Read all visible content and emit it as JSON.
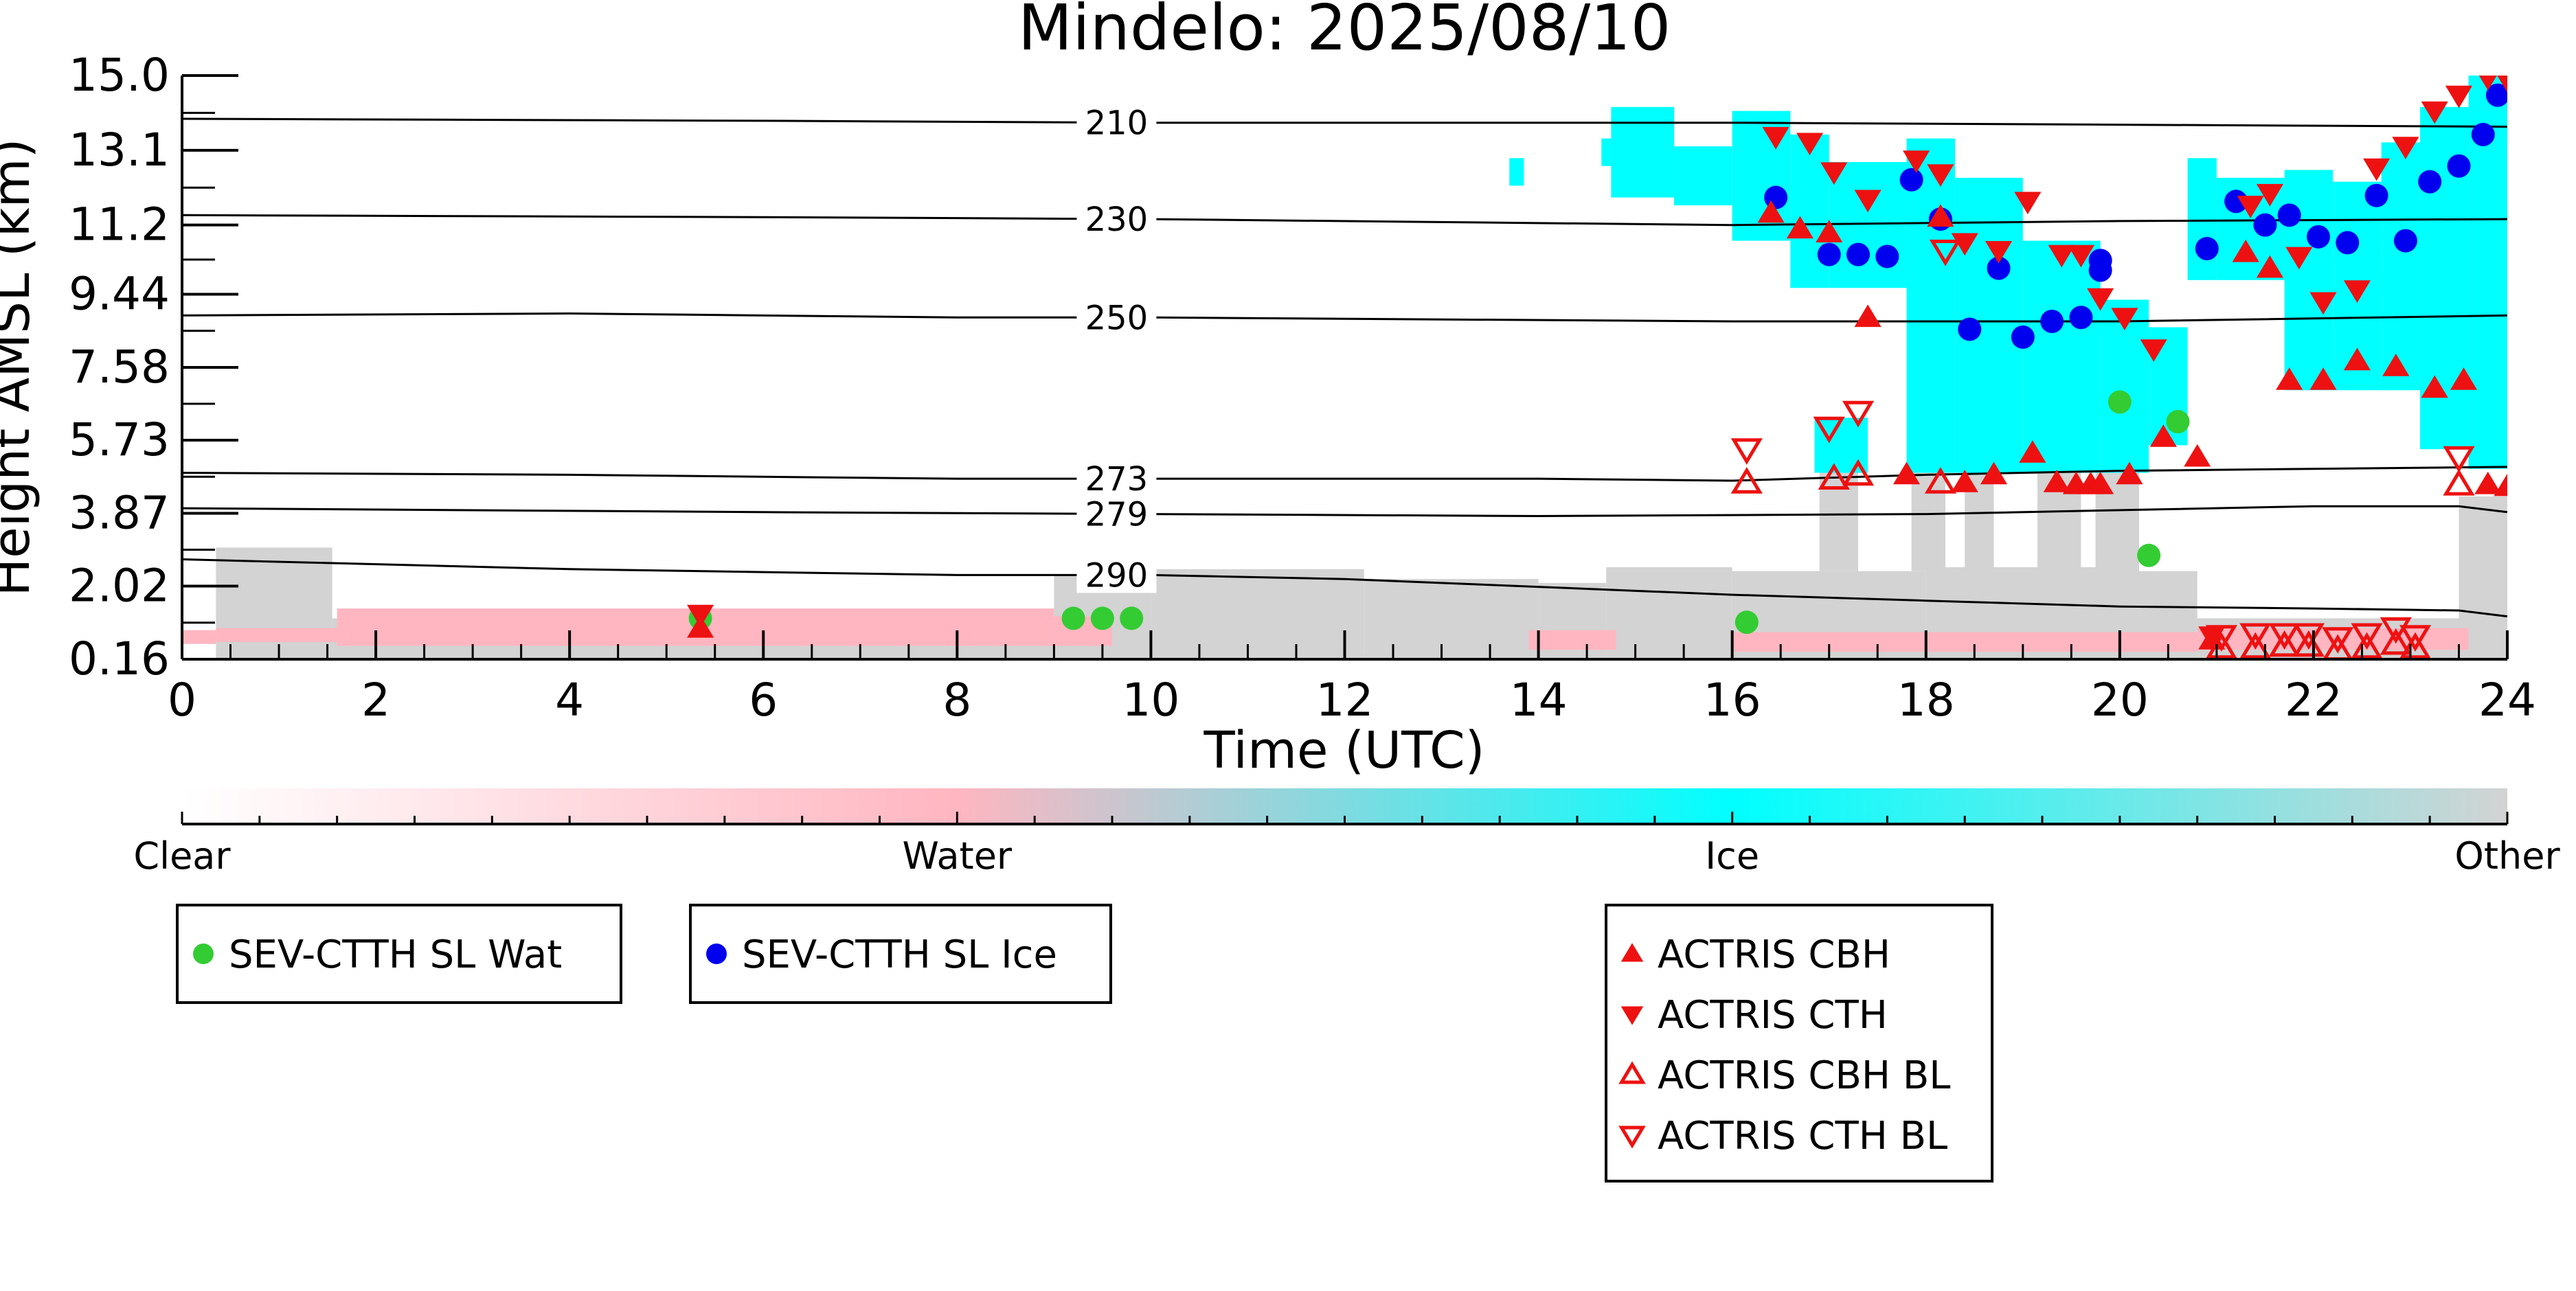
{
  "chart_data": {
    "type": "scatter",
    "title": "Mindelo: 2025/08/10",
    "xlabel": "Time (UTC)",
    "ylabel": "Height AMSL (km)",
    "xlim": [
      0,
      24
    ],
    "ylim": [
      0.16,
      15.0
    ],
    "x_ticks": [
      "0",
      "2",
      "4",
      "6",
      "8",
      "10",
      "12",
      "14",
      "16",
      "18",
      "20",
      "22",
      "24"
    ],
    "y_ticks": [
      "0.16",
      "2.02",
      "3.87",
      "5.73",
      "7.58",
      "9.44",
      "11.2",
      "13.1",
      "15.0"
    ],
    "isotherms": [
      {
        "label": "210",
        "label_x": 10.0,
        "points": [
          [
            0,
            13.9
          ],
          [
            6,
            13.85
          ],
          [
            10,
            13.8
          ],
          [
            16,
            13.8
          ],
          [
            20,
            13.75
          ],
          [
            24,
            13.7
          ]
        ]
      },
      {
        "label": "230",
        "label_x": 10.0,
        "points": [
          [
            0,
            11.45
          ],
          [
            6,
            11.4
          ],
          [
            10,
            11.35
          ],
          [
            16,
            11.2
          ],
          [
            20,
            11.3
          ],
          [
            24,
            11.35
          ]
        ]
      },
      {
        "label": "250",
        "label_x": 10.0,
        "points": [
          [
            0,
            8.9
          ],
          [
            4,
            8.95
          ],
          [
            8,
            8.85
          ],
          [
            10,
            8.85
          ],
          [
            16,
            8.75
          ],
          [
            20,
            8.75
          ],
          [
            24,
            8.9
          ]
        ]
      },
      {
        "label": "273",
        "label_x": 10.0,
        "points": [
          [
            0,
            4.9
          ],
          [
            4,
            4.85
          ],
          [
            8,
            4.75
          ],
          [
            10,
            4.75
          ],
          [
            14,
            4.75
          ],
          [
            16,
            4.7
          ],
          [
            18,
            4.85
          ],
          [
            20,
            4.95
          ],
          [
            24,
            5.05
          ]
        ]
      },
      {
        "label": "279",
        "label_x": 10.0,
        "points": [
          [
            0,
            4.0
          ],
          [
            6,
            3.9
          ],
          [
            10,
            3.85
          ],
          [
            14,
            3.8
          ],
          [
            18,
            3.85
          ],
          [
            20,
            3.95
          ],
          [
            22,
            4.05
          ],
          [
            23.5,
            4.05
          ],
          [
            24,
            3.9
          ]
        ]
      },
      {
        "label": "290",
        "label_x": 10.0,
        "points": [
          [
            0,
            2.7
          ],
          [
            4,
            2.45
          ],
          [
            8,
            2.3
          ],
          [
            10,
            2.3
          ],
          [
            12,
            2.2
          ],
          [
            14,
            2.0
          ],
          [
            16,
            1.8
          ],
          [
            18,
            1.65
          ],
          [
            20,
            1.5
          ],
          [
            22,
            1.45
          ],
          [
            23.5,
            1.4
          ],
          [
            24,
            1.25
          ]
        ]
      }
    ],
    "colorbar": {
      "labels": [
        "Clear",
        "Water",
        "Ice",
        "Other"
      ],
      "colors": [
        "#ffffff",
        "#ffb6c1",
        "#00ffff",
        "#d3d3d3"
      ]
    },
    "classification_colors": {
      "water": "#ffb6c1",
      "ice": "#00ffff",
      "other": "#d3d3d3"
    },
    "series": [
      {
        "name": "SEV-CTTH SL Wat",
        "marker": "circle",
        "color": "#33cc33",
        "points": [
          [
            5.35,
            1.2
          ],
          [
            9.2,
            1.2
          ],
          [
            9.5,
            1.2
          ],
          [
            9.8,
            1.2
          ],
          [
            16.15,
            1.1
          ],
          [
            20.0,
            6.7
          ],
          [
            20.3,
            2.8
          ],
          [
            20.6,
            6.2
          ]
        ]
      },
      {
        "name": "SEV-CTTH SL Ice",
        "marker": "circle",
        "color": "#0000ee",
        "points": [
          [
            16.45,
            11.9
          ],
          [
            17.0,
            10.45
          ],
          [
            17.3,
            10.45
          ],
          [
            17.6,
            10.4
          ],
          [
            17.85,
            12.35
          ],
          [
            18.15,
            11.35
          ],
          [
            18.45,
            8.55
          ],
          [
            18.75,
            10.1
          ],
          [
            19.0,
            8.35
          ],
          [
            19.3,
            8.75
          ],
          [
            19.6,
            8.85
          ],
          [
            19.8,
            10.05
          ],
          [
            19.8,
            10.3
          ],
          [
            20.9,
            10.6
          ],
          [
            21.2,
            11.8
          ],
          [
            21.5,
            11.2
          ],
          [
            21.75,
            11.45
          ],
          [
            22.05,
            10.9
          ],
          [
            22.35,
            10.75
          ],
          [
            22.65,
            11.95
          ],
          [
            22.95,
            10.8
          ],
          [
            23.2,
            12.3
          ],
          [
            23.5,
            12.7
          ],
          [
            23.75,
            13.5
          ],
          [
            23.9,
            14.5
          ]
        ]
      },
      {
        "name": "ACTRIS CBH",
        "marker": "triangle-up",
        "filled": true,
        "color": "#ee1111",
        "points": [
          [
            5.35,
            0.95
          ],
          [
            16.4,
            11.5
          ],
          [
            16.7,
            11.1
          ],
          [
            17.0,
            11.0
          ],
          [
            17.4,
            8.85
          ],
          [
            17.8,
            4.85
          ],
          [
            18.15,
            11.4
          ],
          [
            18.4,
            4.65
          ],
          [
            18.7,
            4.85
          ],
          [
            19.1,
            5.4
          ],
          [
            19.35,
            4.65
          ],
          [
            19.55,
            4.6
          ],
          [
            19.7,
            4.6
          ],
          [
            19.8,
            4.6
          ],
          [
            20.1,
            4.85
          ],
          [
            20.45,
            5.8
          ],
          [
            20.8,
            5.3
          ],
          [
            20.95,
            0.65
          ],
          [
            21.3,
            10.5
          ],
          [
            21.55,
            10.1
          ],
          [
            21.75,
            7.25
          ],
          [
            22.1,
            7.25
          ],
          [
            22.45,
            7.75
          ],
          [
            22.85,
            7.6
          ],
          [
            23.25,
            7.05
          ],
          [
            23.55,
            7.25
          ],
          [
            23.8,
            4.6
          ],
          [
            24.0,
            4.55
          ]
        ]
      },
      {
        "name": "ACTRIS CTH",
        "marker": "triangle-down",
        "filled": true,
        "color": "#ee1111",
        "points": [
          [
            5.35,
            1.3
          ],
          [
            16.45,
            13.45
          ],
          [
            16.8,
            13.3
          ],
          [
            17.05,
            12.55
          ],
          [
            17.4,
            11.85
          ],
          [
            17.9,
            12.85
          ],
          [
            18.15,
            12.5
          ],
          [
            18.4,
            10.75
          ],
          [
            18.75,
            10.55
          ],
          [
            19.05,
            11.8
          ],
          [
            19.4,
            10.45
          ],
          [
            19.6,
            10.45
          ],
          [
            19.8,
            9.35
          ],
          [
            20.05,
            8.85
          ],
          [
            20.35,
            8.05
          ],
          [
            20.95,
            0.75
          ],
          [
            21.35,
            11.7
          ],
          [
            21.55,
            12.0
          ],
          [
            21.85,
            10.4
          ],
          [
            22.1,
            9.25
          ],
          [
            22.45,
            9.55
          ],
          [
            22.65,
            12.65
          ],
          [
            22.95,
            13.2
          ],
          [
            23.25,
            14.1
          ],
          [
            23.5,
            14.5
          ],
          [
            23.8,
            14.95
          ],
          [
            24.0,
            14.9
          ]
        ]
      },
      {
        "name": "ACTRIS CBH BL",
        "marker": "triangle-up",
        "filled": false,
        "color": "#ee1111",
        "points": [
          [
            16.15,
            4.65
          ],
          [
            17.05,
            4.75
          ],
          [
            17.3,
            4.85
          ],
          [
            18.15,
            4.65
          ],
          [
            23.5,
            4.6
          ],
          [
            21.05,
            0.45
          ],
          [
            21.4,
            0.45
          ],
          [
            21.7,
            0.5
          ],
          [
            21.95,
            0.5
          ],
          [
            22.25,
            0.4
          ],
          [
            22.55,
            0.45
          ],
          [
            22.85,
            0.55
          ],
          [
            23.05,
            0.45
          ]
        ]
      },
      {
        "name": "ACTRIS CTH BL",
        "marker": "triangle-down",
        "filled": false,
        "color": "#ee1111",
        "points": [
          [
            16.15,
            5.5
          ],
          [
            17.0,
            6.05
          ],
          [
            17.3,
            6.45
          ],
          [
            18.2,
            10.55
          ],
          [
            23.5,
            5.3
          ],
          [
            21.05,
            0.75
          ],
          [
            21.4,
            0.8
          ],
          [
            21.7,
            0.8
          ],
          [
            21.95,
            0.8
          ],
          [
            22.25,
            0.7
          ],
          [
            22.55,
            0.8
          ],
          [
            22.85,
            0.95
          ],
          [
            23.05,
            0.75
          ]
        ]
      }
    ],
    "legends": [
      {
        "entries": [
          "SEV-CTTH SL Wat"
        ]
      },
      {
        "entries": [
          "SEV-CTTH SL Ice"
        ]
      },
      {
        "entries": [
          "ACTRIS CBH",
          "ACTRIS CTH",
          "ACTRIS CBH BL",
          "ACTRIS CTH BL"
        ]
      }
    ]
  }
}
